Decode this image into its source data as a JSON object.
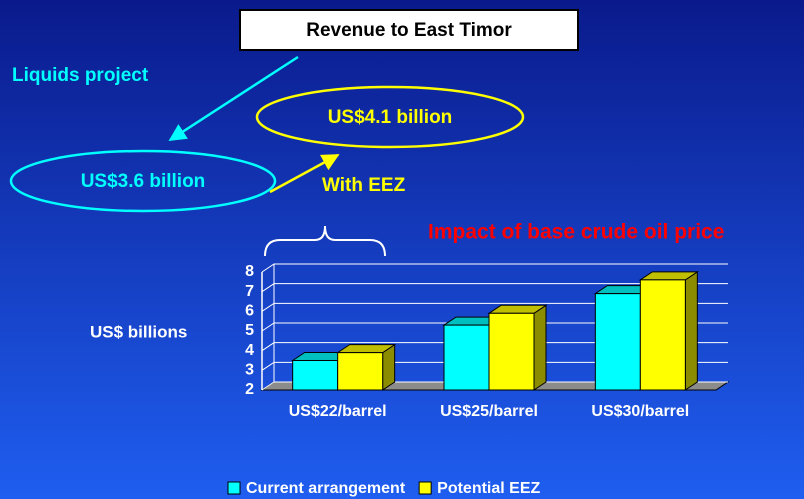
{
  "annotations": {
    "heading": "Revenue to East Timor",
    "liquids_label": "Liquids project",
    "liquids_value": "US$3.6 billion",
    "eez_value": "US$4.1 billion",
    "eez_label": "With EEZ"
  },
  "chart_data": {
    "type": "bar",
    "title": "Impact of base crude oil price",
    "ylabel": "US$ billions",
    "categories": [
      "US$22/barrel",
      "US$25/barrel",
      "US$30/barrel"
    ],
    "series": [
      {
        "name": "Current arrangement",
        "color": "#00ffff",
        "values": [
          3.5,
          5.3,
          6.9
        ]
      },
      {
        "name": "Potential EEZ",
        "color": "#ffff00",
        "values": [
          3.9,
          5.9,
          7.6
        ]
      }
    ],
    "ylim": [
      2,
      8
    ],
    "yticks": [
      2,
      3,
      4,
      5,
      6,
      7,
      8
    ],
    "grid": true,
    "legend": "bottom"
  }
}
